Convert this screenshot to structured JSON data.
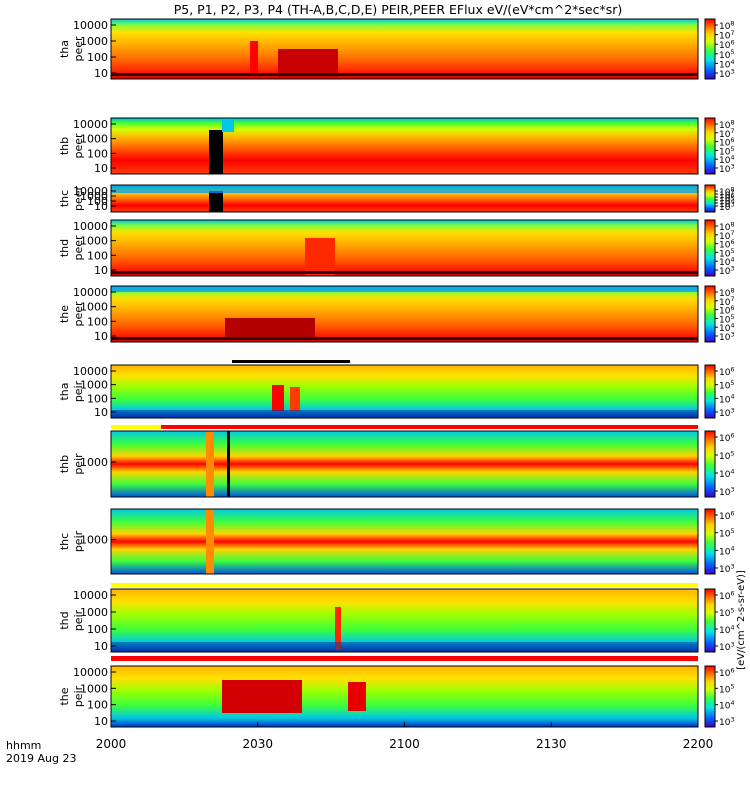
{
  "chart_data": {
    "type": "heatmap",
    "title": "P5, P1, P2, P3, P4 (TH-A,B,C,D,E) PEIR,PEER EFlux eV/(eV*cm^2*sec*sr)",
    "x_ticks": [
      "2000",
      "2030",
      "2100",
      "2130",
      "2200"
    ],
    "x_label_line1": "hhmm",
    "x_label_line2": "2019 Aug 23",
    "colorbar_units": "[eV/(cm^2-s-sr-eV)]",
    "panels": [
      {
        "probe": "tha",
        "species": "peer",
        "yticks": [
          "10000",
          "1000",
          "100",
          "10"
        ],
        "cbar_ticks": [
          "10^8",
          "10^7",
          "10^6",
          "10^5",
          "10^4",
          "10^3"
        ]
      },
      {
        "probe": "thb",
        "species": "peer",
        "yticks": [
          "10000",
          "1000",
          "100",
          "10"
        ],
        "cbar_ticks": [
          "10^8",
          "10^7",
          "10^6",
          "10^5",
          "10^4",
          "10^3"
        ]
      },
      {
        "probe": "thc",
        "species": "peer",
        "yticks": [
          "10000",
          "1000",
          "100",
          "10"
        ],
        "cbar_ticks": [
          "10^8",
          "10^7",
          "10^6",
          "10^5",
          "10^4",
          "10^3"
        ]
      },
      {
        "probe": "thd",
        "species": "peer",
        "yticks": [
          "10000",
          "1000",
          "100",
          "10"
        ],
        "cbar_ticks": [
          "10^8",
          "10^7",
          "10^6",
          "10^5",
          "10^4",
          "10^3"
        ]
      },
      {
        "probe": "the",
        "species": "peer",
        "yticks": [
          "10000",
          "1000",
          "100",
          "10"
        ],
        "cbar_ticks": [
          "10^8",
          "10^7",
          "10^6",
          "10^5",
          "10^4",
          "10^3"
        ]
      },
      {
        "probe": "tha",
        "species": "peir",
        "yticks": [
          "10000",
          "1000",
          "100",
          "10"
        ],
        "cbar_ticks": [
          "10^6",
          "10^5",
          "10^4",
          "10^3"
        ]
      },
      {
        "probe": "thb",
        "species": "peir",
        "yticks": [
          "1000"
        ],
        "cbar_ticks": [
          "10^6",
          "10^5",
          "10^4",
          "10^3"
        ]
      },
      {
        "probe": "thc",
        "species": "peir",
        "yticks": [
          "1000"
        ],
        "cbar_ticks": [
          "10^6",
          "10^5",
          "10^4",
          "10^3"
        ]
      },
      {
        "probe": "thd",
        "species": "peir",
        "yticks": [
          "10000",
          "1000",
          "100",
          "10"
        ],
        "cbar_ticks": [
          "10^6",
          "10^5",
          "10^4",
          "10^3"
        ]
      },
      {
        "probe": "the",
        "species": "peir",
        "yticks": [
          "10000",
          "1000",
          "100",
          "10"
        ],
        "cbar_ticks": [
          "10^6",
          "10^5",
          "10^4",
          "10^3"
        ]
      }
    ]
  },
  "colors": {
    "spectrum": [
      "#ff0000",
      "#ff6a00",
      "#ffd400",
      "#d4ff00",
      "#3cff3c",
      "#00e6e6",
      "#0064ff",
      "#3c00c8",
      "#000000"
    ],
    "quality_bar_peer": "#ff0000",
    "quality_bar_peir": "#ff0000"
  }
}
